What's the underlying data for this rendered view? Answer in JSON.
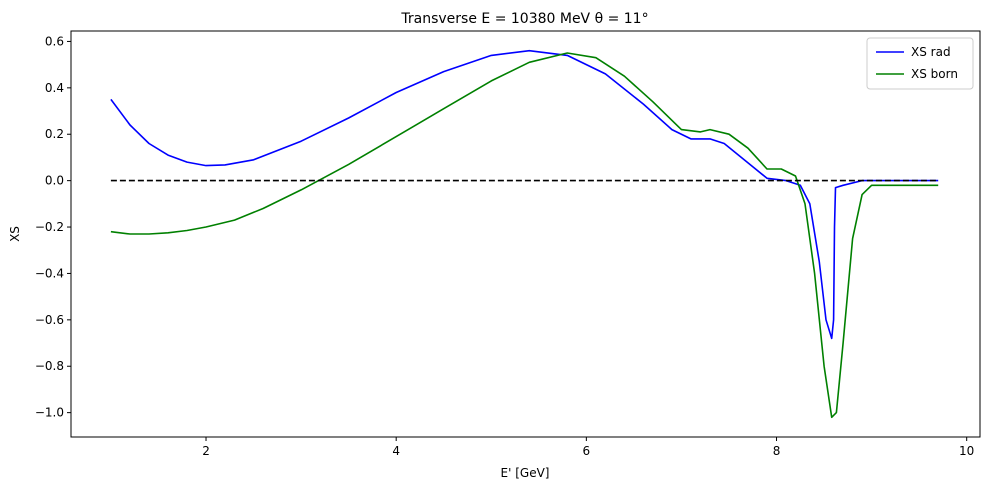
{
  "chart_data": {
    "type": "line",
    "title": "Transverse E = 10380 MeV θ = 11°",
    "xlabel": "E' [GeV]",
    "ylabel": "XS",
    "xlim": [
      0.58,
      10.14
    ],
    "ylim": [
      -1.105,
      0.645
    ],
    "xticks": [
      2,
      4,
      6,
      8,
      10
    ],
    "yticks": [
      -1.0,
      -0.8,
      -0.6,
      -0.4,
      -0.2,
      0.0,
      0.2,
      0.4,
      0.6
    ],
    "xtick_labels": [
      "2",
      "4",
      "6",
      "8",
      "10"
    ],
    "ytick_labels": [
      "−1.0",
      "−0.8",
      "−0.6",
      "−0.4",
      "−0.2",
      "0.0",
      "0.2",
      "0.4",
      "0.6"
    ],
    "grid": false,
    "legend_position": "top-right",
    "series": [
      {
        "name": "XS rad",
        "color": "#0000ff",
        "style": "solid",
        "x": [
          1.0,
          1.2,
          1.4,
          1.6,
          1.8,
          2.0,
          2.2,
          2.5,
          3.0,
          3.5,
          4.0,
          4.5,
          5.0,
          5.4,
          5.8,
          6.2,
          6.6,
          6.9,
          7.1,
          7.3,
          7.45,
          7.6,
          7.75,
          7.9,
          8.1,
          8.25,
          8.35,
          8.45,
          8.52,
          8.58,
          8.6,
          8.61,
          8.62,
          8.7,
          8.9,
          9.2,
          9.7
        ],
        "y": [
          0.35,
          0.24,
          0.16,
          0.11,
          0.08,
          0.065,
          0.068,
          0.09,
          0.17,
          0.27,
          0.38,
          0.47,
          0.54,
          0.56,
          0.54,
          0.46,
          0.33,
          0.22,
          0.18,
          0.18,
          0.16,
          0.11,
          0.06,
          0.01,
          0.0,
          -0.02,
          -0.1,
          -0.35,
          -0.6,
          -0.68,
          -0.6,
          -0.2,
          -0.03,
          -0.02,
          0.0,
          0.0,
          0.0
        ]
      },
      {
        "name": "XS born",
        "color": "#008000",
        "style": "solid",
        "x": [
          1.0,
          1.2,
          1.4,
          1.6,
          1.8,
          2.0,
          2.3,
          2.6,
          3.0,
          3.5,
          4.0,
          4.5,
          5.0,
          5.4,
          5.8,
          6.1,
          6.4,
          6.7,
          7.0,
          7.2,
          7.3,
          7.5,
          7.7,
          7.9,
          8.05,
          8.2,
          8.3,
          8.4,
          8.5,
          8.58,
          8.63,
          8.7,
          8.8,
          8.9,
          9.0,
          9.3,
          9.7
        ],
        "y": [
          -0.22,
          -0.23,
          -0.23,
          -0.225,
          -0.215,
          -0.2,
          -0.17,
          -0.12,
          -0.04,
          0.07,
          0.19,
          0.31,
          0.43,
          0.51,
          0.55,
          0.53,
          0.45,
          0.34,
          0.22,
          0.21,
          0.22,
          0.2,
          0.14,
          0.05,
          0.05,
          0.02,
          -0.1,
          -0.4,
          -0.8,
          -1.02,
          -1.0,
          -0.7,
          -0.25,
          -0.06,
          -0.02,
          -0.02,
          -0.02
        ]
      },
      {
        "name": "",
        "color": "#000000",
        "style": "dashed",
        "x": [
          1.0,
          9.7
        ],
        "y": [
          0.0,
          0.0
        ]
      }
    ]
  }
}
